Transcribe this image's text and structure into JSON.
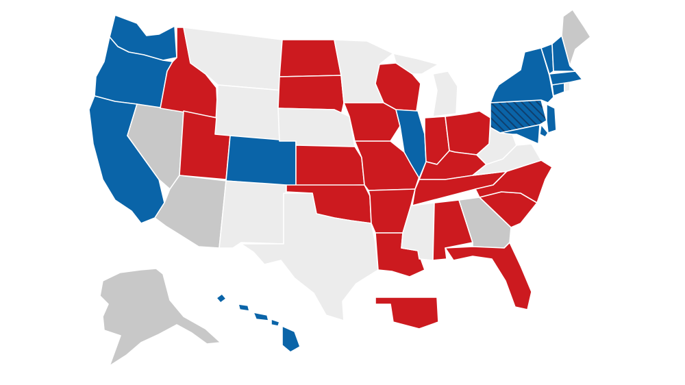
{
  "map": {
    "legend": {
      "dem": "#0a64a8",
      "rep": "#cc1a1f",
      "tossup": "#c8c8c8",
      "none": "#ececec",
      "lean_dem_hatch": "#0f4f86"
    },
    "states": {
      "WA": "dem",
      "OR": "dem",
      "CA": "dem",
      "CO": "dem",
      "HI": "dem",
      "NY": "dem",
      "VT": "dem",
      "NH": "dem",
      "MA": "dem",
      "CT": "dem",
      "NJ": "dem",
      "DE": "dem",
      "MD": "dem",
      "IL": "dem",
      "PA": "lean_dem_hatch",
      "ID": "rep",
      "UT": "rep",
      "ND": "rep",
      "SD": "rep",
      "KS": "rep",
      "OK": "rep",
      "IA": "rep",
      "WI": "rep",
      "MO": "rep",
      "AR": "rep",
      "LA": "rep",
      "IN": "rep",
      "OH": "rep",
      "KY": "rep",
      "TN": "rep",
      "NC": "rep",
      "SC": "rep",
      "AL": "rep",
      "FL": "rep",
      "OK_special": "rep",
      "NV": "tossup",
      "AZ": "tossup",
      "GA": "tossup",
      "AK": "tossup",
      "ME": "tossup",
      "MT": "none",
      "WY": "none",
      "NE": "none",
      "NM": "none",
      "TX": "none",
      "MN": "none",
      "MI": "none",
      "MS": "none",
      "WV": "none",
      "VA": "none",
      "RI": "none"
    }
  }
}
